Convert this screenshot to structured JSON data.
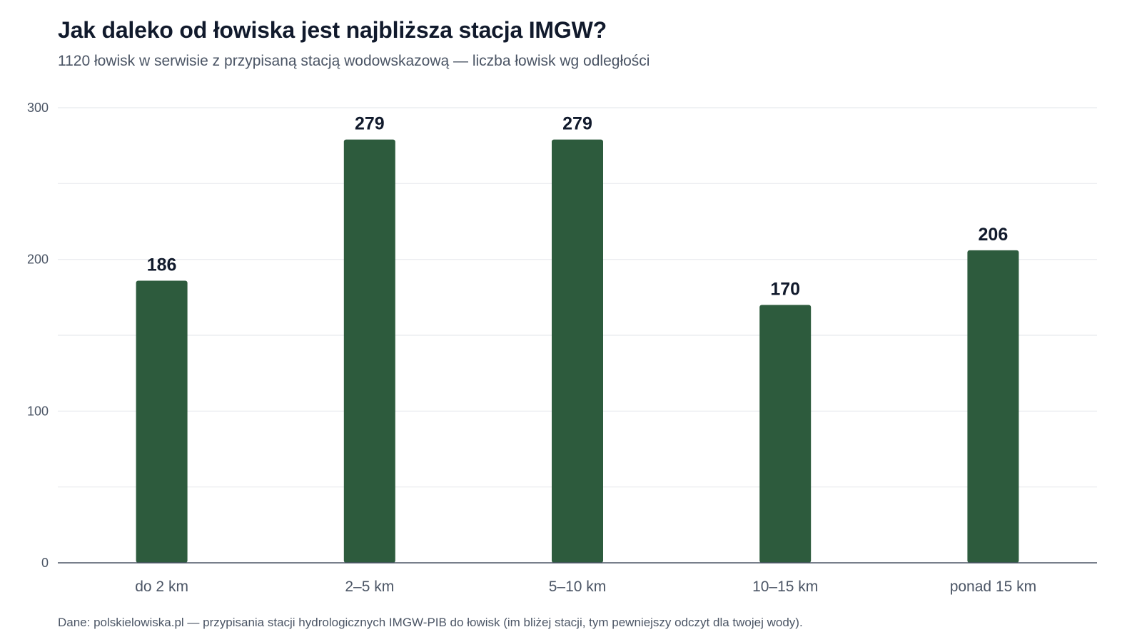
{
  "header": {
    "title": "Jak daleko od łowiska jest najbliższa stacja IMGW?",
    "subtitle": "1120 łowisk w serwisie z przypisaną stacją wodowskazową — liczba łowisk wg odległości"
  },
  "footer": {
    "source": "Dane: polskielowiska.pl — przypisania stacji hydrologicznych IMGW-PIB do łowisk (im bliżej stacji, tym pewniejszy odczyt dla twojej wody)."
  },
  "colors": {
    "bar": "#2d5b3d",
    "grid": "#e8eaee",
    "axis": "#4b5565"
  },
  "chart_data": {
    "type": "bar",
    "title": "Jak daleko od łowiska jest najbliższa stacja IMGW?",
    "subtitle": "1120 łowisk w serwisie z przypisaną stacją wodowskazową — liczba łowisk wg odległości",
    "categories": [
      "do 2 km",
      "2–5 km",
      "5–10 km",
      "10–15 km",
      "ponad 15 km"
    ],
    "values": [
      186,
      279,
      279,
      170,
      206
    ],
    "xlabel": "",
    "ylabel": "",
    "ylim": [
      0,
      300
    ],
    "yticks": [
      0,
      100,
      200,
      300
    ],
    "grid": true,
    "legend": "none"
  }
}
